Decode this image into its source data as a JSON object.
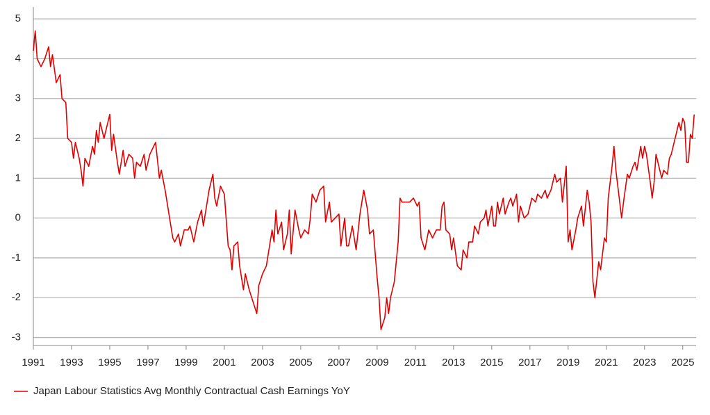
{
  "chart_data": {
    "type": "line",
    "legend_position": "bottom-left",
    "grid": true,
    "xlim": [
      1991,
      2025.7
    ],
    "xticks": [
      1991,
      1993,
      1995,
      1997,
      1999,
      2001,
      2003,
      2005,
      2007,
      2009,
      2011,
      2013,
      2015,
      2017,
      2019,
      2021,
      2023,
      2025
    ],
    "ylim": [
      -3.2,
      5.3
    ],
    "yticks": [
      -3,
      -2,
      -1,
      0,
      1,
      2,
      3,
      4,
      5
    ],
    "x": [
      1991.0,
      1991.1,
      1991.2,
      1991.4,
      1991.6,
      1991.8,
      1991.9,
      1992.0,
      1992.2,
      1992.4,
      1992.5,
      1992.7,
      1992.8,
      1993.0,
      1993.1,
      1993.2,
      1993.4,
      1993.5,
      1993.6,
      1993.7,
      1993.9,
      1994.1,
      1994.2,
      1994.3,
      1994.4,
      1994.5,
      1994.7,
      1994.9,
      1995.0,
      1995.1,
      1995.2,
      1995.4,
      1995.5,
      1995.7,
      1995.8,
      1996.0,
      1996.2,
      1996.3,
      1996.4,
      1996.6,
      1996.8,
      1996.9,
      1997.1,
      1997.3,
      1997.4,
      1997.6,
      1997.7,
      1997.9,
      1998.1,
      1998.3,
      1998.4,
      1998.6,
      1998.7,
      1998.9,
      1999.1,
      1999.2,
      1999.4,
      1999.6,
      1999.8,
      1999.9,
      2000.2,
      2000.4,
      2000.5,
      2000.6,
      2000.8,
      2001.0,
      2001.2,
      2001.3,
      2001.4,
      2001.5,
      2001.7,
      2001.8,
      2002.0,
      2002.1,
      2002.3,
      2002.5,
      2002.7,
      2002.8,
      2003.0,
      2003.2,
      2003.4,
      2003.5,
      2003.6,
      2003.7,
      2003.8,
      2004.0,
      2004.1,
      2004.3,
      2004.4,
      2004.5,
      2004.7,
      2004.9,
      2005.0,
      2005.2,
      2005.4,
      2005.5,
      2005.6,
      2005.8,
      2006.0,
      2006.2,
      2006.3,
      2006.5,
      2006.6,
      2006.8,
      2007.0,
      2007.1,
      2007.3,
      2007.4,
      2007.5,
      2007.7,
      2007.9,
      2008.1,
      2008.3,
      2008.5,
      2008.6,
      2008.8,
      2009.0,
      2009.1,
      2009.2,
      2009.4,
      2009.5,
      2009.6,
      2009.7,
      2009.9,
      2010.1,
      2010.2,
      2010.3,
      2010.5,
      2010.7,
      2010.9,
      2011.1,
      2011.2,
      2011.3,
      2011.5,
      2011.7,
      2011.9,
      2012.1,
      2012.3,
      2012.4,
      2012.5,
      2012.6,
      2012.8,
      2012.9,
      2013.0,
      2013.2,
      2013.4,
      2013.5,
      2013.7,
      2013.8,
      2014.0,
      2014.1,
      2014.3,
      2014.4,
      2014.6,
      2014.7,
      2014.8,
      2015.0,
      2015.1,
      2015.2,
      2015.3,
      2015.4,
      2015.6,
      2015.7,
      2015.9,
      2016.0,
      2016.1,
      2016.3,
      2016.4,
      2016.5,
      2016.7,
      2016.9,
      2017.1,
      2017.3,
      2017.4,
      2017.6,
      2017.8,
      2017.9,
      2018.1,
      2018.3,
      2018.4,
      2018.6,
      2018.7,
      2018.9,
      2019.0,
      2019.1,
      2019.2,
      2019.4,
      2019.5,
      2019.7,
      2019.8,
      2020.0,
      2020.1,
      2020.2,
      2020.3,
      2020.4,
      2020.6,
      2020.7,
      2020.9,
      2021.0,
      2021.1,
      2021.3,
      2021.4,
      2021.5,
      2021.6,
      2021.8,
      2021.9,
      2022.1,
      2022.2,
      2022.4,
      2022.5,
      2022.6,
      2022.8,
      2022.9,
      2023.0,
      2023.1,
      2023.3,
      2023.4,
      2023.5,
      2023.6,
      2023.8,
      2023.9,
      2024.0,
      2024.2,
      2024.3,
      2024.4,
      2024.6,
      2024.8,
      2024.9,
      2025.0,
      2025.1,
      2025.2,
      2025.3,
      2025.4,
      2025.5,
      2025.6
    ],
    "series": [
      {
        "name": "Japan Labour Statistics Avg Monthly Contractual Cash Earnings YoY",
        "color": "#e00000",
        "values": [
          4.2,
          4.7,
          4.0,
          3.8,
          4.0,
          4.3,
          3.8,
          4.1,
          3.4,
          3.6,
          3.0,
          2.9,
          2.0,
          1.9,
          1.5,
          1.9,
          1.5,
          1.2,
          0.8,
          1.5,
          1.3,
          1.8,
          1.6,
          2.2,
          1.9,
          2.4,
          2.0,
          2.4,
          2.6,
          1.7,
          2.1,
          1.4,
          1.1,
          1.7,
          1.3,
          1.6,
          1.5,
          1.0,
          1.4,
          1.3,
          1.6,
          1.2,
          1.6,
          1.8,
          1.9,
          1.0,
          1.2,
          0.7,
          0.1,
          -0.5,
          -0.6,
          -0.4,
          -0.7,
          -0.3,
          -0.3,
          -0.2,
          -0.6,
          -0.1,
          0.2,
          -0.2,
          0.7,
          1.1,
          0.5,
          0.3,
          0.8,
          0.6,
          -0.7,
          -0.8,
          -1.3,
          -0.7,
          -0.6,
          -1.2,
          -1.8,
          -1.4,
          -1.8,
          -2.1,
          -2.4,
          -1.7,
          -1.4,
          -1.2,
          -0.6,
          -0.3,
          -0.6,
          0.2,
          -0.4,
          -0.1,
          -0.8,
          -0.4,
          0.2,
          -0.9,
          0.2,
          -0.3,
          -0.5,
          -0.3,
          -0.4,
          0.0,
          0.6,
          0.4,
          0.7,
          0.8,
          -0.1,
          0.4,
          -0.1,
          0.0,
          0.1,
          -0.7,
          0.0,
          -0.7,
          -0.7,
          -0.2,
          -0.8,
          0.1,
          0.7,
          0.2,
          -0.4,
          -0.3,
          -1.5,
          -2.0,
          -2.8,
          -2.5,
          -2.0,
          -2.4,
          -2.0,
          -1.6,
          -0.6,
          0.5,
          0.4,
          0.4,
          0.4,
          0.5,
          0.3,
          0.4,
          -0.5,
          -0.8,
          -0.3,
          -0.5,
          -0.3,
          -0.3,
          0.3,
          0.4,
          -0.3,
          -0.4,
          -0.8,
          -0.5,
          -1.2,
          -1.3,
          -0.8,
          -1.0,
          -0.6,
          -0.6,
          -0.2,
          -0.4,
          -0.1,
          0.0,
          0.2,
          -0.2,
          0.3,
          -0.2,
          -0.2,
          0.4,
          0.1,
          0.5,
          0.1,
          0.4,
          0.5,
          0.3,
          0.6,
          -0.1,
          0.3,
          0.0,
          0.1,
          0.5,
          0.4,
          0.6,
          0.5,
          0.7,
          0.5,
          0.7,
          1.1,
          0.9,
          1.0,
          0.4,
          1.3,
          -0.6,
          -0.3,
          -0.8,
          -0.3,
          0.0,
          0.3,
          -0.2,
          0.7,
          0.4,
          -0.1,
          -1.6,
          -2.0,
          -1.1,
          -1.3,
          -0.5,
          -0.6,
          0.5,
          1.3,
          1.8,
          1.2,
          0.8,
          0.0,
          0.4,
          1.1,
          1.0,
          1.3,
          1.4,
          1.2,
          1.8,
          1.5,
          1.8,
          1.6,
          0.9,
          0.5,
          0.9,
          1.6,
          1.2,
          1.0,
          1.2,
          1.1,
          1.5,
          1.6,
          2.0,
          2.4,
          2.2,
          2.5,
          2.4,
          1.4,
          1.4,
          2.1,
          2.0,
          2.6
        ]
      }
    ]
  }
}
